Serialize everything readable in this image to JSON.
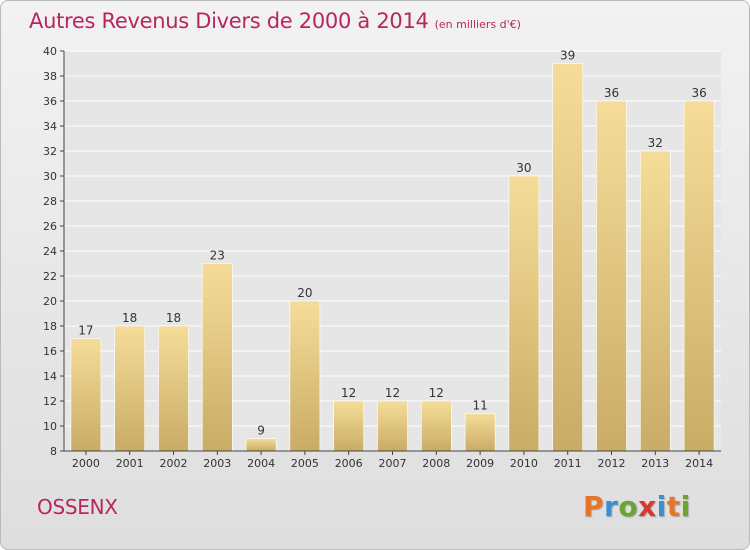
{
  "header": {
    "title": "Autres Revenus Divers de 2000 à 2014",
    "subtitle": "(en milliers d'€)"
  },
  "footer": {
    "commune": "OSSENX",
    "logo": "Proxiti",
    "logo_letter_colors": [
      "#e8742a",
      "#3a8fd0",
      "#6aa532",
      "#d63a2f",
      "#3a8fd0",
      "#e8742a",
      "#6aa532"
    ]
  },
  "chart_data": {
    "type": "bar",
    "categories": [
      "2000",
      "2001",
      "2002",
      "2003",
      "2004",
      "2005",
      "2006",
      "2007",
      "2008",
      "2009",
      "2010",
      "2011",
      "2012",
      "2013",
      "2014"
    ],
    "values": [
      17,
      18,
      18,
      23,
      9,
      20,
      12,
      12,
      12,
      11,
      30,
      39,
      36,
      32,
      36
    ],
    "title": "Autres Revenus Divers de 2000 à 2014",
    "subtitle": "(en milliers d'€)",
    "ylim": [
      8,
      40
    ],
    "yticks": [
      8,
      10,
      12,
      14,
      16,
      18,
      20,
      22,
      24,
      26,
      28,
      30,
      32,
      34,
      36,
      38,
      40
    ],
    "grid": true,
    "colors": {
      "bar_light": "#f5dd99",
      "bar_dark": "#c9ac66",
      "grid": "#ffffff",
      "axis": "#444444",
      "text": "#333333",
      "plot_bg": "#e6e6e6"
    }
  }
}
